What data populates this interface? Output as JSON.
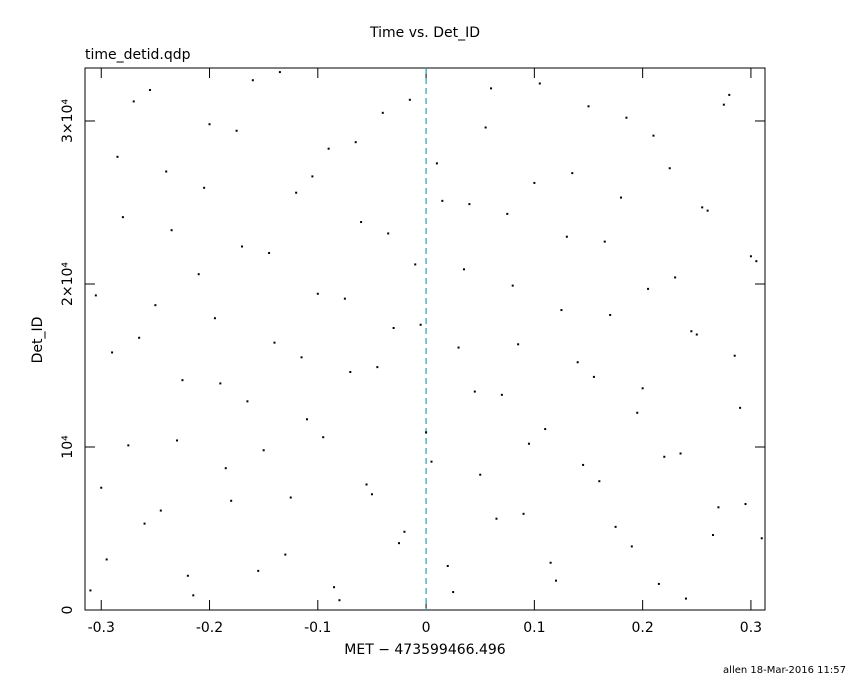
{
  "chart_data": {
    "type": "scatter",
    "title": "Time vs. Det_ID",
    "subtitle": "time_detid.qdp",
    "x_label": "MET − 473599466.496",
    "y_label": "Det_ID",
    "footer": "allen 18-Mar-2016 11:57",
    "xlim": [
      -0.315,
      0.313
    ],
    "ylim": [
      0,
      33250
    ],
    "xticks": [
      -0.3,
      -0.2,
      -0.1,
      0,
      0.1,
      0.2,
      0.3
    ],
    "yticks": [
      0,
      {
        "value": 10000,
        "label": "10⁴"
      },
      {
        "value": 20000,
        "label": "2×10⁴"
      },
      {
        "value": 30000,
        "label": "3×10⁴"
      }
    ],
    "color": "#000000",
    "vline": {
      "value": 0,
      "color": "#2aa0a8"
    },
    "x": [
      -0.31,
      -0.3,
      -0.29,
      -0.28,
      -0.27,
      -0.26,
      -0.25,
      -0.24,
      -0.23,
      -0.22,
      -0.21,
      -0.2,
      -0.19,
      -0.18,
      -0.17,
      -0.16,
      -0.15,
      -0.14,
      -0.13,
      -0.12,
      -0.11,
      -0.1,
      -0.09,
      -0.08,
      -0.07,
      -0.06,
      -0.05,
      -0.04,
      -0.03,
      -0.02,
      -0.01,
      0.0,
      0.01,
      0.02,
      0.03,
      0.04,
      0.05,
      0.06,
      0.07,
      0.08,
      0.09,
      0.1,
      0.11,
      0.12,
      0.13,
      0.14,
      0.15,
      0.16,
      0.17,
      0.18,
      0.19,
      0.2,
      0.21,
      0.22,
      0.23,
      0.24,
      0.25,
      0.26,
      0.27,
      0.28,
      0.29,
      0.3,
      0.31,
      -0.305,
      -0.295,
      -0.285,
      -0.275,
      -0.265,
      -0.255,
      -0.245,
      -0.235,
      -0.225,
      -0.215,
      -0.205,
      -0.195,
      -0.185,
      -0.175,
      -0.165,
      -0.155,
      -0.145,
      -0.135,
      -0.125,
      -0.115,
      -0.105,
      -0.095,
      -0.085,
      -0.075,
      -0.065,
      -0.055,
      -0.045,
      -0.035,
      -0.025,
      -0.015,
      -0.005,
      0.005,
      0.015,
      0.025,
      0.035,
      0.045,
      0.055,
      0.065,
      0.075,
      0.085,
      0.095,
      0.105,
      0.115,
      0.125,
      0.135,
      0.145,
      0.155,
      0.165,
      0.175,
      0.185,
      0.195,
      0.205,
      0.215,
      0.225,
      0.235,
      0.245,
      0.255,
      0.265,
      0.275,
      0.285,
      0.295,
      0.305
    ],
    "values": [
      1200,
      7500,
      15800,
      24100,
      31200,
      5300,
      18700,
      26900,
      10400,
      2100,
      20600,
      29800,
      13900,
      6700,
      22300,
      32500,
      9800,
      16400,
      3400,
      25600,
      11700,
      19400,
      28300,
      600,
      14600,
      23800,
      7100,
      30500,
      17300,
      4800,
      21200,
      10900,
      27400,
      2700,
      16100,
      24900,
      8300,
      32000,
      13200,
      19900,
      5900,
      26200,
      11100,
      1800,
      22900,
      15200,
      30900,
      7900,
      18100,
      25300,
      3900,
      13600,
      29100,
      9400,
      20400,
      700,
      16900,
      24500,
      6300,
      31600,
      12400,
      21700,
      4400,
      19300,
      3100,
      27800,
      10100,
      16700,
      31900,
      6100,
      23300,
      14100,
      900,
      25900,
      17900,
      8700,
      29400,
      12800,
      2400,
      21900,
      33000,
      6900,
      15500,
      26600,
      10600,
      1400,
      19100,
      28700,
      7700,
      14900,
      23100,
      4100,
      31300,
      17500,
      9100,
      25100,
      1100,
      20900,
      13400,
      29600,
      5600,
      24300,
      16300,
      10200,
      32300,
      2900,
      18400,
      26800,
      8900,
      14300,
      22600,
      5100,
      30200,
      12100,
      19700,
      1600,
      27100,
      9600,
      17100,
      24700,
      4600,
      31000,
      15600,
      6500,
      21400
    ]
  }
}
